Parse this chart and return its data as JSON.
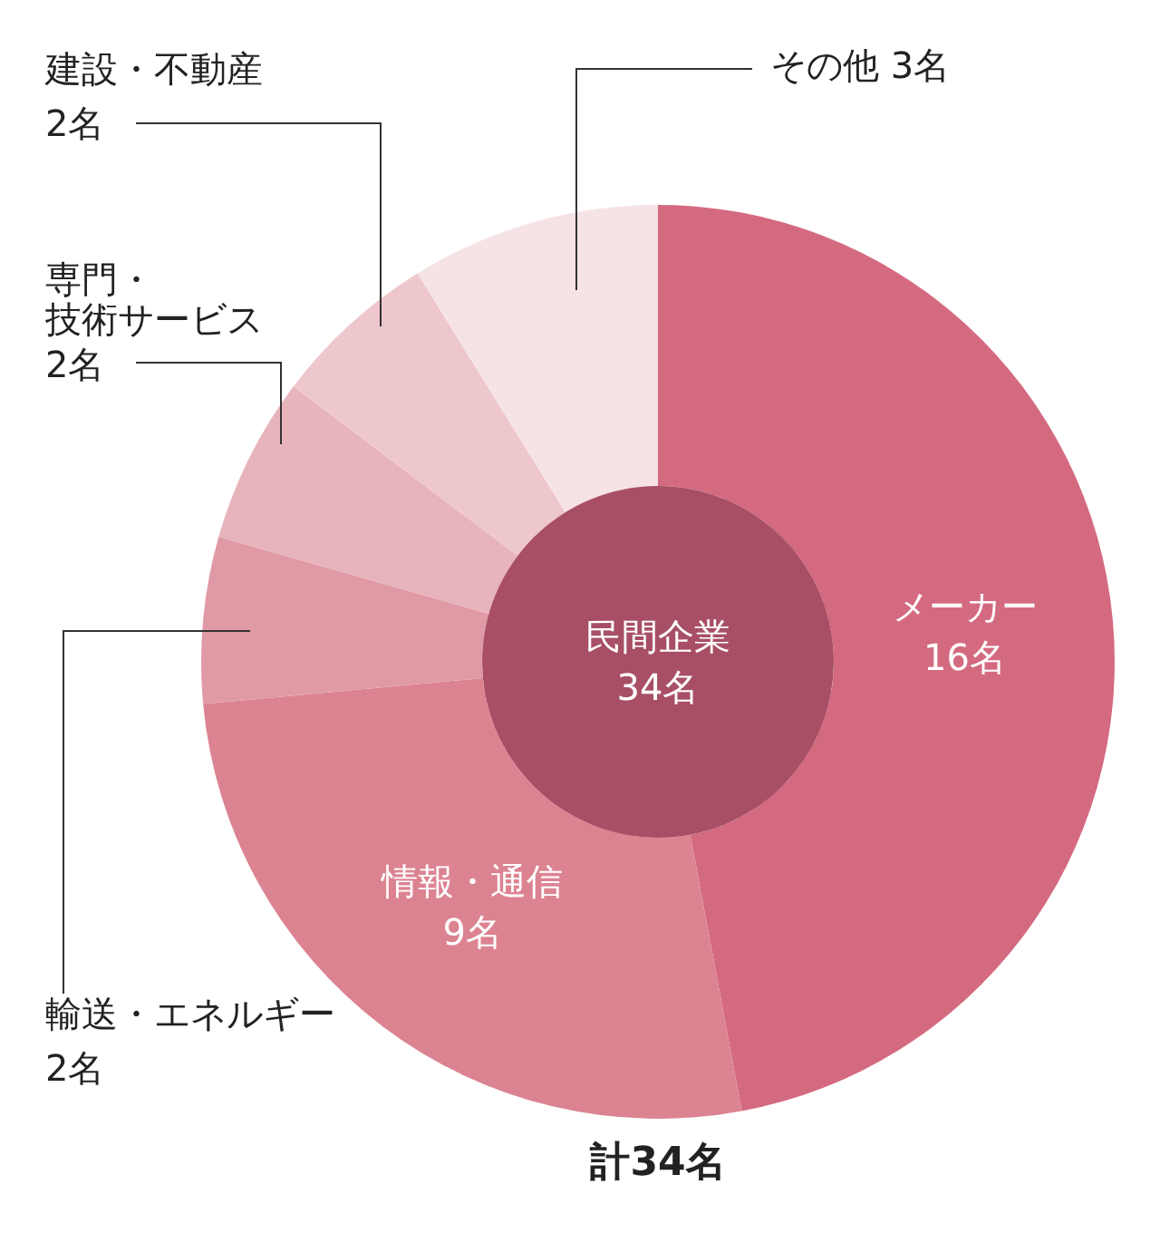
{
  "chart_data": {
    "type": "donut",
    "categories": [
      "メーカー",
      "情報・通信",
      "輸送・エネルギー",
      "専門・技術サービス",
      "建設・不動産",
      "その他"
    ],
    "values": [
      16,
      9,
      2,
      2,
      2,
      3
    ],
    "value_labels": [
      "16名",
      "9名",
      "2名",
      "2名",
      "2名",
      "3名"
    ],
    "colors": [
      "#d46a80",
      "#dc8391",
      "#e09aa5",
      "#e7b4bb",
      "#eec7cd",
      "#f6e3e6"
    ],
    "annotations": [
      "民間企業\n34名",
      "計34名"
    ],
    "legend": false
  }
}
